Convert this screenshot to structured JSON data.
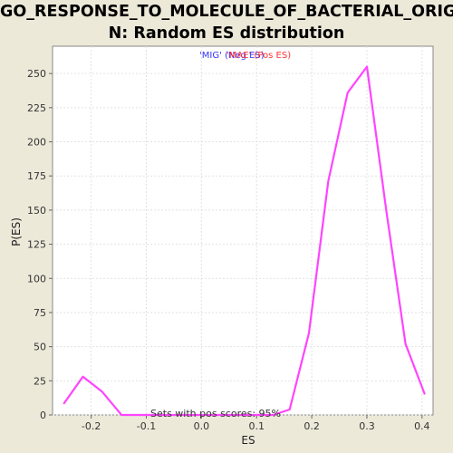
{
  "chart_data": {
    "type": "line",
    "title_line1": "GO_RESPONSE_TO_MOLECULE_OF_BACTERIAL_ORIGI",
    "title_line2": "N: Random ES distribution",
    "xlabel": "ES",
    "ylabel": "P(ES)",
    "xlim": [
      -0.27,
      0.42
    ],
    "ylim": [
      0,
      270
    ],
    "xticks": [
      -0.2,
      -0.1,
      0.0,
      0.1,
      0.2,
      0.3,
      0.4
    ],
    "xtick_labels": [
      "-0.2",
      "-0.1",
      "0.0",
      "0.1",
      "0.2",
      "0.3",
      "0.4"
    ],
    "yticks": [
      0,
      25,
      50,
      75,
      100,
      125,
      150,
      175,
      200,
      225,
      250
    ],
    "ytick_labels": [
      "0",
      "25",
      "50",
      "75",
      "100",
      "125",
      "150",
      "175",
      "200",
      "225",
      "250"
    ],
    "grid": true,
    "series": [
      {
        "color": "#ff44ff",
        "x": [
          -0.25,
          -0.215,
          -0.18,
          -0.145,
          -0.11,
          -0.075,
          -0.04,
          -0.005,
          0.03,
          0.065,
          0.1,
          0.13,
          0.16,
          0.195,
          0.23,
          0.265,
          0.3,
          0.335,
          0.37,
          0.405
        ],
        "y": [
          8,
          28,
          17,
          0,
          0,
          0,
          0,
          0,
          0,
          0,
          0,
          0,
          4,
          60,
          171,
          236,
          255,
          150,
          52,
          15
        ]
      }
    ],
    "legend": {
      "placement": "top-center",
      "neg_label": "'MIG' (Neg ES)",
      "neg_color": "#3333ff",
      "pos_label": "'MAE' (Pos ES)",
      "pos_color": "#ff3333"
    },
    "annotation": "Sets with pos scores: 95%"
  }
}
